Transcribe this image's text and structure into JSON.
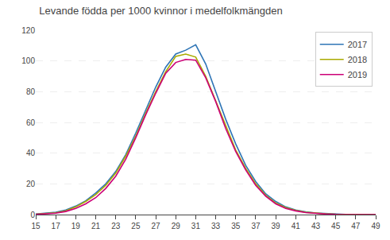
{
  "chart_data": {
    "type": "line",
    "title": "Levande födda per 1000 kvinnor i medelfolkmängden",
    "x": [
      15,
      16,
      17,
      18,
      19,
      20,
      21,
      22,
      23,
      24,
      25,
      26,
      27,
      28,
      29,
      30,
      31,
      32,
      33,
      34,
      35,
      36,
      37,
      38,
      39,
      40,
      41,
      42,
      43,
      44,
      45,
      46,
      47,
      48,
      49
    ],
    "series": [
      {
        "name": "2017",
        "color": "#2E75B6",
        "values": [
          0.3,
          0.8,
          1.5,
          3.0,
          5.5,
          9.0,
          14.0,
          20.0,
          28.0,
          39.0,
          53.0,
          68.0,
          83.0,
          96.0,
          104.5,
          107.0,
          110.5,
          98.0,
          80.0,
          62.0,
          46.0,
          32.0,
          21.5,
          13.5,
          8.5,
          5.0,
          3.0,
          1.8,
          1.0,
          0.6,
          0.3,
          0.15,
          0.08,
          0.04,
          0.02
        ]
      },
      {
        "name": "2018",
        "color": "#AAAA00",
        "values": [
          0.2,
          0.6,
          1.2,
          2.5,
          5.0,
          8.5,
          13.0,
          19.0,
          27.0,
          38.0,
          51.0,
          66.0,
          80.0,
          93.0,
          103.0,
          104.5,
          102.5,
          90.0,
          74.0,
          57.0,
          42.0,
          30.0,
          20.0,
          12.5,
          7.5,
          4.5,
          2.7,
          1.5,
          0.8,
          0.45,
          0.2,
          0.1,
          0.05,
          0.02,
          0.01
        ]
      },
      {
        "name": "2019",
        "color": "#CC0077",
        "values": [
          0.1,
          0.4,
          0.9,
          2.0,
          4.0,
          7.0,
          11.0,
          17.0,
          25.0,
          36.0,
          50.0,
          65.0,
          79.0,
          92.0,
          99.0,
          101.0,
          100.5,
          89.0,
          73.5,
          56.0,
          41.0,
          29.0,
          19.0,
          12.0,
          7.0,
          4.0,
          2.4,
          1.3,
          0.7,
          0.35,
          0.15,
          0.07,
          0.03,
          0.01,
          0.005
        ]
      }
    ],
    "xlim": [
      15,
      49
    ],
    "xticks": [
      15,
      17,
      19,
      21,
      23,
      25,
      27,
      29,
      31,
      33,
      35,
      37,
      39,
      41,
      43,
      45,
      47,
      49
    ],
    "ylim": [
      0,
      120
    ],
    "yticks": [
      0,
      20,
      40,
      60,
      80,
      100,
      120
    ],
    "grid": "y",
    "legend": "upper right"
  }
}
